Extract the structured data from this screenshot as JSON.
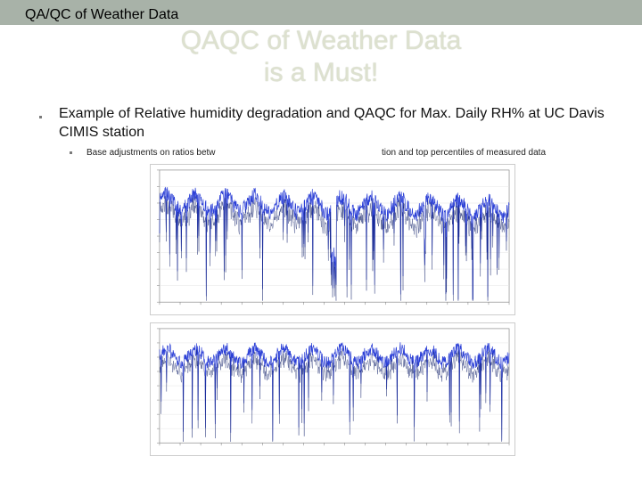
{
  "header": {
    "title": "QA/QC of Weather Data"
  },
  "slide": {
    "title_line1": "QAQC of Weather Data",
    "title_line2": "is a Must!",
    "bullet": "Example of Relative humidity degradation and QAQC for Max. Daily RH% at UC Davis CIMIS station",
    "sub_bullet_left": "Base adjustments on ratios betw",
    "sub_bullet_right": "tion and top percentiles of measured data"
  },
  "colors": {
    "header_bar": "#a8b2a8",
    "title": "#dde1cf",
    "series_light": "#2b3fd6",
    "series_dark": "#0a1a66"
  },
  "chart_data": [
    {
      "type": "line",
      "title": "",
      "xlabel": "",
      "ylabel": "",
      "note": "Measured daily maximum relative humidity with degradation (drifting and dips), plotted for a multi-year period; axis tick labels are illegible in the image."
    },
    {
      "type": "line",
      "title": "",
      "xlabel": "",
      "ylabel": "",
      "note": "QAQC-adjusted daily maximum relative humidity for the same period; axis tick labels are illegible in the image."
    }
  ]
}
